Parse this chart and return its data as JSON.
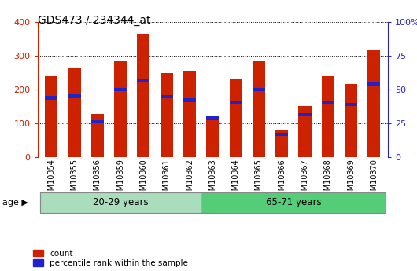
{
  "title": "GDS473 / 234344_at",
  "samples": [
    "GSM10354",
    "GSM10355",
    "GSM10356",
    "GSM10359",
    "GSM10360",
    "GSM10361",
    "GSM10362",
    "GSM10363",
    "GSM10364",
    "GSM10365",
    "GSM10366",
    "GSM10367",
    "GSM10368",
    "GSM10369",
    "GSM10370"
  ],
  "counts": [
    240,
    263,
    127,
    283,
    365,
    249,
    255,
    115,
    230,
    283,
    80,
    150,
    238,
    215,
    315
  ],
  "percentile_vals": [
    175,
    180,
    105,
    200,
    228,
    178,
    168,
    115,
    163,
    200,
    68,
    125,
    160,
    155,
    215
  ],
  "bar_color": "#cc2200",
  "pct_color": "#2222cc",
  "groups": [
    {
      "label": "20-29 years",
      "start": 0,
      "end": 7,
      "color": "#aaddbb"
    },
    {
      "label": "65-71 years",
      "start": 7,
      "end": 15,
      "color": "#55cc77"
    }
  ],
  "age_label": "age",
  "ylim_left": [
    0,
    400
  ],
  "ylim_right": [
    0,
    100
  ],
  "yticks_left": [
    0,
    100,
    200,
    300,
    400
  ],
  "yticks_right": [
    0,
    25,
    50,
    75,
    100
  ],
  "legend_count": "count",
  "legend_pct": "percentile rank within the sample",
  "bar_width": 0.55,
  "pct_bar_height": 10,
  "background_color": "#ffffff",
  "left_axis_color": "#cc2200",
  "right_axis_color": "#2222cc",
  "grid_color": "#000000"
}
